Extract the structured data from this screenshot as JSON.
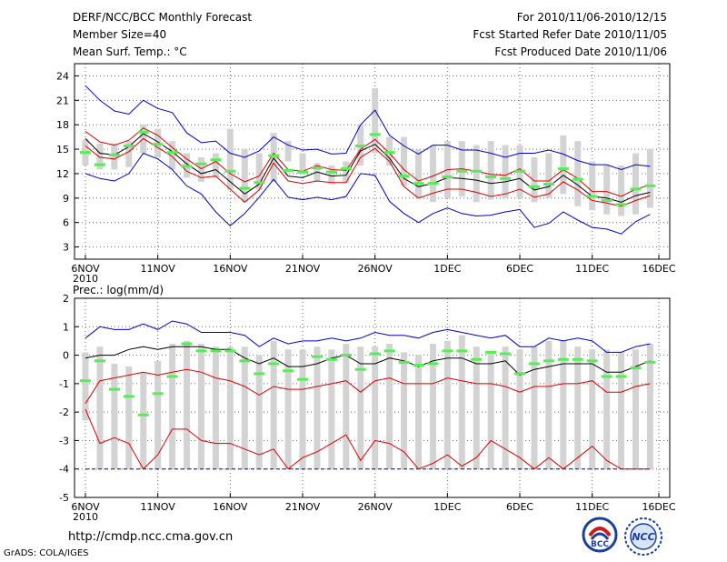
{
  "header": {
    "title": "DERF/NCC/BCC Monthly Forecast",
    "member_size": "Member Size=40",
    "variable": "Mean Surf. Temp.: °C",
    "period": "For 2010/11/06-2010/12/15",
    "refer_date": "Fcst Started Refer Date 2010/11/05",
    "produced_date": "Fcst Produced Date 2010/11/06"
  },
  "footer": {
    "url": "http://cmdp.ncc.cma.gov.cn",
    "credit": "GrADS: COLA/IGES",
    "logo1_text": "BCC",
    "logo2_text": "NCC"
  },
  "colors": {
    "grid": "#666666",
    "box": "#d3d3d3",
    "mean": "#55ee55",
    "median": "#000000",
    "quartile": "#dd0000",
    "extreme": "#0000cc",
    "floor": "#0000cc"
  },
  "chart_data": [
    {
      "type": "ensemble-boxplot",
      "name": "temperature",
      "panel_label": "",
      "ylabel": "°C",
      "ylim": [
        1.5,
        25.5
      ],
      "yticks": [
        3,
        6,
        9,
        12,
        15,
        18,
        21,
        24
      ],
      "xlim": [
        0,
        39.6
      ],
      "xticks": [
        {
          "x": 0,
          "label": "6NOV",
          "sub": "2010"
        },
        {
          "x": 5,
          "label": "11NOV"
        },
        {
          "x": 10,
          "label": "16NOV"
        },
        {
          "x": 15,
          "label": "21NOV"
        },
        {
          "x": 20,
          "label": "26NOV"
        },
        {
          "x": 25,
          "label": "1DEC"
        },
        {
          "x": 30,
          "label": "6DEC"
        },
        {
          "x": 35,
          "label": "11DEC"
        },
        {
          "x": 39.6,
          "label": "16DEC"
        }
      ],
      "days": 40,
      "box_low": [
        13,
        12.5,
        12.5,
        12.8,
        14.5,
        14,
        12.5,
        11.5,
        11,
        11.5,
        10,
        8.5,
        10,
        11,
        13.5,
        12,
        11,
        10.7,
        10.9,
        13,
        14.5,
        13,
        10.5,
        9,
        8.5,
        9,
        9.2,
        8.5,
        8.8,
        9,
        9,
        8.5,
        9,
        9.5,
        8,
        7.5,
        7,
        6.8,
        7,
        7.8
      ],
      "box_high": [
        16.2,
        15.7,
        15.7,
        16,
        18,
        17.5,
        16,
        14.5,
        14,
        14.5,
        17.5,
        15,
        14.5,
        17,
        16,
        14.5,
        13.3,
        13,
        13.5,
        18,
        22.5,
        16.5,
        16.5,
        15,
        15.5,
        16,
        16,
        15.5,
        16,
        15.5,
        15.5,
        14,
        14.5,
        16.7,
        16,
        13.5,
        13,
        13,
        14.5,
        15
      ],
      "mean": [
        14.6,
        13.1,
        14.3,
        15.4,
        17.1,
        15.6,
        14.6,
        12.9,
        13.2,
        13.7,
        12.3,
        10.2,
        10.9,
        14.2,
        12.4,
        12.2,
        12.7,
        12.2,
        12.6,
        15.4,
        16.8,
        14.6,
        11.7,
        10.8,
        10.8,
        11.6,
        12.3,
        12.3,
        11.6,
        11.4,
        12.3,
        10.4,
        10.7,
        12.6,
        11.3,
        9.2,
        8.7,
        8.2,
        10.1,
        10.5
      ],
      "lines": [
        {
          "name": "max",
          "color_key": "extreme",
          "values": [
            22.8,
            21,
            19.7,
            19.3,
            21,
            20,
            19.5,
            17,
            15.8,
            16,
            14.5,
            14,
            14.8,
            16.5,
            15.5,
            14.9,
            15,
            14.4,
            14.5,
            18,
            19.8,
            16.7,
            15.4,
            14.4,
            15.5,
            15.5,
            14.9,
            14.9,
            14.5,
            14,
            14.5,
            14.5,
            14.9,
            14.4,
            13.6,
            13.1,
            13.1,
            12.5,
            13.1,
            12.9
          ]
        },
        {
          "name": "q3",
          "color_key": "quartile",
          "values": [
            17.2,
            15.9,
            15.5,
            16.1,
            17.6,
            16.7,
            15.2,
            13.8,
            12.6,
            13.5,
            12,
            11,
            11.7,
            14.5,
            12.5,
            12.3,
            13,
            12.5,
            12.4,
            15,
            16.2,
            14.5,
            12.5,
            11.1,
            11.7,
            12.5,
            12.6,
            12.3,
            11.9,
            11.8,
            12.6,
            11.1,
            11.1,
            12.5,
            11.4,
            9.8,
            9.8,
            9.2,
            10.1,
            10.6
          ]
        },
        {
          "name": "median",
          "color_key": "median",
          "values": [
            16.3,
            14.5,
            14.3,
            15.3,
            16.9,
            15.9,
            14.7,
            13.2,
            12,
            12.5,
            11,
            9.5,
            10.7,
            13.9,
            11.7,
            11.5,
            12.2,
            11.7,
            11.8,
            14.8,
            15.6,
            13.9,
            11.4,
            10.4,
            10.8,
            11.5,
            11.4,
            11.2,
            10.8,
            11,
            11.4,
            10,
            10.4,
            11.8,
            10.6,
            9.2,
            9,
            8.5,
            9.3,
            9.7
          ]
        },
        {
          "name": "q1",
          "color_key": "quartile",
          "values": [
            15.4,
            14,
            13.8,
            14.7,
            16.3,
            15.2,
            14.1,
            12.3,
            11.5,
            11.7,
            10.1,
            8.5,
            10,
            13.3,
            11.1,
            10.8,
            11.1,
            10.9,
            10.9,
            14,
            15.1,
            13.5,
            10.4,
            9,
            9.6,
            10.1,
            10.1,
            9.7,
            9.2,
            9.5,
            10.1,
            9.1,
            9.5,
            11,
            10,
            8.7,
            8.4,
            8,
            8.7,
            9.3
          ]
        },
        {
          "name": "min",
          "color_key": "extreme",
          "values": [
            12,
            11.4,
            11.1,
            12,
            14.5,
            13.8,
            12.5,
            10.5,
            9.5,
            7.3,
            5.6,
            7.1,
            9.1,
            11.3,
            9.1,
            8.8,
            9.1,
            8.8,
            9.2,
            12,
            11.8,
            8.6,
            7.1,
            6,
            7.1,
            7.8,
            7.1,
            6.8,
            6.9,
            7.3,
            7.6,
            5.4,
            5.9,
            7.3,
            6.3,
            5.4,
            5.2,
            4.6,
            6.1,
            7
          ]
        }
      ]
    },
    {
      "type": "ensemble-boxplot",
      "name": "precipitation",
      "panel_label": "Prec.: log(mm/d)",
      "ylim": [
        -5,
        2
      ],
      "yticks": [
        -5,
        -4,
        -3,
        -2,
        -1,
        0,
        1,
        2
      ],
      "xlim": [
        0,
        39.6
      ],
      "xticks": [
        {
          "x": 0,
          "label": "6NOV",
          "sub": "2010"
        },
        {
          "x": 5,
          "label": "11NOV"
        },
        {
          "x": 10,
          "label": "16NOV"
        },
        {
          "x": 15,
          "label": "21NOV"
        },
        {
          "x": 20,
          "label": "26NOV"
        },
        {
          "x": 25,
          "label": "1DEC"
        },
        {
          "x": 30,
          "label": "6DEC"
        },
        {
          "x": 35,
          "label": "11DEC"
        },
        {
          "x": 39.6,
          "label": "16DEC"
        }
      ],
      "days": 40,
      "floor_value": -4,
      "box_low": [
        -2.3,
        -4,
        -4,
        -4,
        -4,
        -4,
        -4,
        -4,
        -4,
        -4,
        -4,
        -4,
        -4,
        -4,
        -4,
        -4,
        -4,
        -4,
        -4,
        -4,
        -4,
        -4,
        -4,
        -4,
        -4,
        -4,
        -4,
        -4,
        -4,
        -4,
        -4,
        -4,
        -4,
        -4,
        -4,
        -4,
        -4,
        -4,
        -4,
        -4
      ],
      "box_high": [
        0.1,
        0.3,
        -0.3,
        -0.4,
        -0.6,
        -0.2,
        0.4,
        0.5,
        0.4,
        0.3,
        0.3,
        0.3,
        0,
        0.5,
        0.2,
        0.2,
        0.3,
        0.2,
        0.4,
        0.3,
        0.3,
        0.4,
        0.1,
        0,
        0.4,
        0.5,
        0.7,
        0.3,
        0.1,
        0.3,
        0.2,
        0.3,
        0.5,
        0.5,
        0.3,
        0.2,
        0.2,
        0.1,
        0.2,
        0.4
      ],
      "mean": [
        -0.9,
        -0.2,
        -1.2,
        -1.45,
        -2.1,
        -1.35,
        -0.75,
        0.4,
        0.15,
        0.15,
        0.15,
        -0.2,
        -0.65,
        -0.3,
        -0.55,
        -0.85,
        -0.05,
        -0.15,
        0,
        -0.5,
        0.05,
        0.15,
        -0.25,
        -0.35,
        -0.3,
        0.15,
        0.15,
        -0.15,
        0.1,
        0.05,
        -0.65,
        -0.3,
        -0.2,
        -0.15,
        -0.15,
        -0.2,
        -0.75,
        -0.75,
        -0.45,
        -0.25
      ],
      "lines": [
        {
          "name": "max",
          "color_key": "extreme",
          "values": [
            0.6,
            1,
            0.9,
            0.9,
            1.1,
            0.9,
            1.2,
            1.1,
            0.8,
            0.8,
            0.8,
            0.7,
            0.3,
            0.6,
            0.4,
            0.5,
            0.5,
            0.6,
            0.5,
            0.6,
            0.8,
            0.7,
            0.7,
            0.6,
            0.8,
            0.9,
            0.8,
            0.7,
            0.6,
            0.7,
            0.3,
            0.3,
            0.6,
            0.5,
            0.6,
            0.5,
            0.1,
            0.1,
            0.3,
            0.4
          ]
        },
        {
          "name": "q3",
          "color_key": "median",
          "values": [
            -0.1,
            0,
            0,
            0.2,
            0.3,
            0.2,
            0.3,
            0.3,
            0.3,
            0.2,
            0.2,
            -0.1,
            -0.3,
            -0.1,
            -0.4,
            -0.4,
            -0.3,
            -0.1,
            0,
            -0.3,
            -0.3,
            -0.1,
            -0.2,
            -0.4,
            -0.2,
            -0.1,
            -0.1,
            -0.3,
            -0.3,
            -0.2,
            -0.7,
            -0.5,
            -0.4,
            -0.3,
            -0.3,
            -0.3,
            -0.6,
            -0.6,
            -0.4,
            -0.2
          ]
        },
        {
          "name": "q1",
          "color_key": "quartile",
          "values": [
            -1.7,
            -0.9,
            -0.8,
            -0.7,
            -0.6,
            -0.7,
            -0.6,
            -0.5,
            -0.6,
            -0.8,
            -0.9,
            -1.1,
            -1.4,
            -1.1,
            -1.2,
            -1.2,
            -1.1,
            -1,
            -0.9,
            -1.3,
            -0.9,
            -0.8,
            -1,
            -1,
            -1,
            -0.8,
            -0.9,
            -1,
            -1,
            -1.1,
            -1.3,
            -1.1,
            -1.1,
            -1,
            -1,
            -0.9,
            -1.3,
            -1.3,
            -1.1,
            -1
          ]
        },
        {
          "name": "min",
          "color_key": "quartile",
          "values": [
            -1.9,
            -3.1,
            -2.9,
            -3.1,
            -4,
            -3.5,
            -2.6,
            -2.6,
            -3,
            -3.1,
            -3.1,
            -3.3,
            -3.5,
            -3.3,
            -4,
            -3.6,
            -3.4,
            -3.1,
            -2.8,
            -3.7,
            -3,
            -3.1,
            -3.4,
            -4,
            -3.8,
            -3.5,
            -3.9,
            -3.6,
            -3,
            -3.3,
            -3.6,
            -4,
            -3.6,
            -4,
            -3.6,
            -3.2,
            -3.7,
            -4,
            -4,
            -4
          ]
        }
      ]
    }
  ]
}
